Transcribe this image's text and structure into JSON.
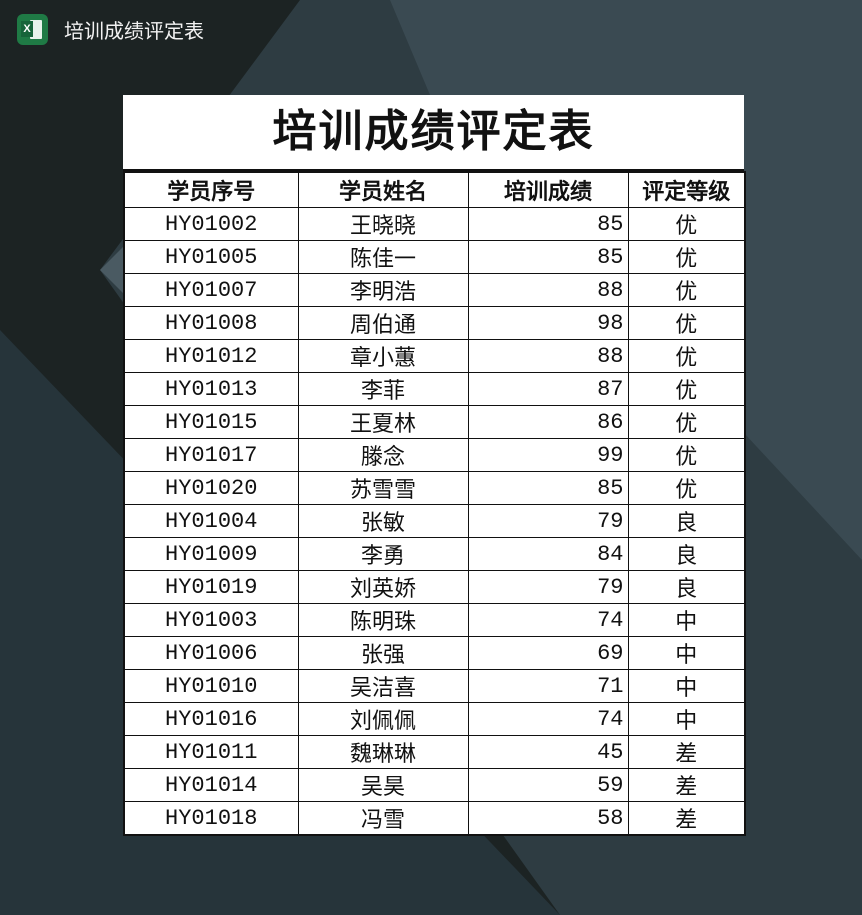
{
  "window": {
    "title": "培训成绩评定表",
    "app_icon": "excel-icon",
    "app_icon_letter": "X"
  },
  "document": {
    "title": "培训成绩评定表",
    "columns": [
      "学员序号",
      "学员姓名",
      "培训成绩",
      "评定等级"
    ],
    "rows": [
      [
        "HY01002",
        "王晓晓",
        "85",
        "优"
      ],
      [
        "HY01005",
        "陈佳一",
        "85",
        "优"
      ],
      [
        "HY01007",
        "李明浩",
        "88",
        "优"
      ],
      [
        "HY01008",
        "周伯通",
        "98",
        "优"
      ],
      [
        "HY01012",
        "章小蕙",
        "88",
        "优"
      ],
      [
        "HY01013",
        "李菲",
        "87",
        "优"
      ],
      [
        "HY01015",
        "王夏林",
        "86",
        "优"
      ],
      [
        "HY01017",
        "滕念",
        "99",
        "优"
      ],
      [
        "HY01020",
        "苏雪雪",
        "85",
        "优"
      ],
      [
        "HY01004",
        "张敏",
        "79",
        "良"
      ],
      [
        "HY01009",
        "李勇",
        "84",
        "良"
      ],
      [
        "HY01019",
        "刘英娇",
        "79",
        "良"
      ],
      [
        "HY01003",
        "陈明珠",
        "74",
        "中"
      ],
      [
        "HY01006",
        "张强",
        "69",
        "中"
      ],
      [
        "HY01010",
        "吴洁喜",
        "71",
        "中"
      ],
      [
        "HY01016",
        "刘佩佩",
        "74",
        "中"
      ],
      [
        "HY01011",
        "魏琳琳",
        "45",
        "差"
      ],
      [
        "HY01014",
        "吴昊",
        "59",
        "差"
      ],
      [
        "HY01018",
        "冯雪",
        "58",
        "差"
      ]
    ]
  },
  "colors": {
    "background": "#1c2323",
    "accent_shape": "#2f3f45",
    "excel_green": "#1f7a45"
  }
}
